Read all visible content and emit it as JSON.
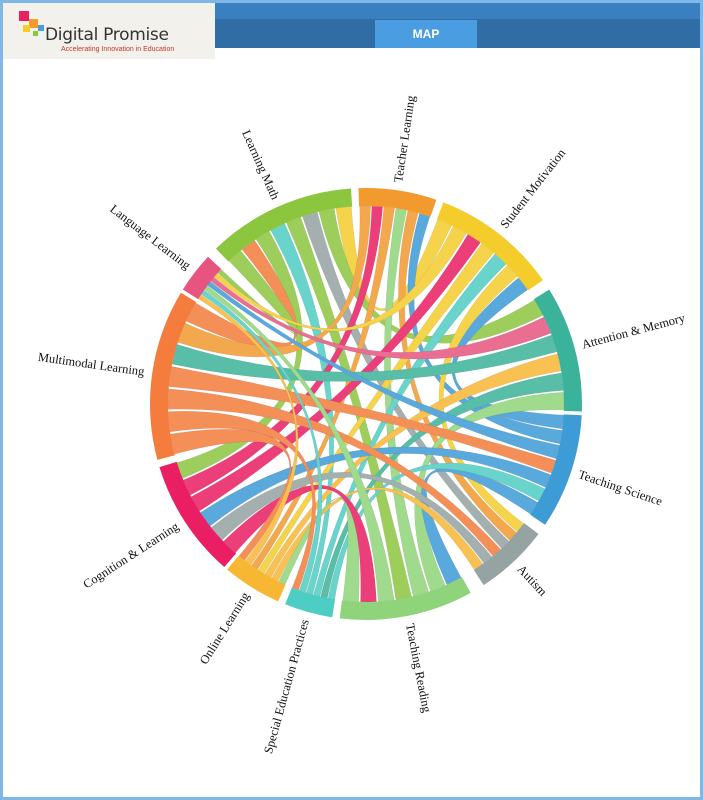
{
  "header": {
    "brand": "Digital Promise",
    "tagline": "Accelerating Innovation in Education",
    "tab": "MAP"
  },
  "diagram": {
    "groups": [
      {
        "label": "Learning Math",
        "color": "#8cc63f"
      },
      {
        "label": "Teacher Learning",
        "color": "#f29a2e"
      },
      {
        "label": "Student Motivation",
        "color": "#f4cc2c"
      },
      {
        "label": "Attention & Memory",
        "color": "#3bb39a"
      },
      {
        "label": "Teaching Science",
        "color": "#3d9bd6"
      },
      {
        "label": "Autism",
        "color": "#95a3a3"
      },
      {
        "label": "Teaching Reading",
        "color": "#8fd47a"
      },
      {
        "label": "Special Education Practices",
        "color": "#4ecdc4"
      },
      {
        "label": "Online Learning",
        "color": "#f7b733"
      },
      {
        "label": "Cognition & Learning",
        "color": "#e91e63"
      },
      {
        "label": "Multimodal Learning",
        "color": "#f47c3c"
      },
      {
        "label": "Language Learning",
        "color": "#e75480"
      }
    ]
  }
}
